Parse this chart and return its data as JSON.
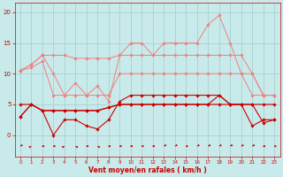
{
  "x": [
    0,
    1,
    2,
    3,
    4,
    5,
    6,
    7,
    8,
    9,
    10,
    11,
    12,
    13,
    14,
    15,
    16,
    17,
    18,
    19,
    20,
    21,
    22,
    23
  ],
  "series": [
    {
      "name": "max_gust",
      "color": "#f08080",
      "linewidth": 0.7,
      "marker": "D",
      "markersize": 1.8,
      "values": [
        10.5,
        11.5,
        13.0,
        10.0,
        6.5,
        8.5,
        6.5,
        8.0,
        5.5,
        13.0,
        15.0,
        15.0,
        13.0,
        15.0,
        15.0,
        15.0,
        15.0,
        18.0,
        19.5,
        15.0,
        10.0,
        6.5,
        6.5,
        6.5
      ]
    },
    {
      "name": "avg_wind_high",
      "color": "#f08080",
      "linewidth": 0.7,
      "marker": "D",
      "markersize": 1.8,
      "values": [
        10.5,
        11.5,
        13.0,
        13.0,
        13.0,
        12.5,
        12.5,
        12.5,
        12.5,
        13.0,
        13.0,
        13.0,
        13.0,
        13.0,
        13.0,
        13.0,
        13.0,
        13.0,
        13.0,
        13.0,
        13.0,
        10.0,
        6.5,
        6.5
      ]
    },
    {
      "name": "avg_wind_mid",
      "color": "#f08080",
      "linewidth": 0.7,
      "marker": "D",
      "markersize": 1.8,
      "values": [
        10.5,
        11.0,
        12.0,
        6.5,
        6.5,
        6.5,
        6.5,
        6.5,
        6.5,
        10.0,
        10.0,
        10.0,
        10.0,
        10.0,
        10.0,
        10.0,
        10.0,
        10.0,
        10.0,
        10.0,
        10.0,
        10.0,
        6.5,
        6.5
      ]
    },
    {
      "name": "wind_speed",
      "color": "#cc0000",
      "linewidth": 0.8,
      "marker": "D",
      "markersize": 1.8,
      "values": [
        3.0,
        5.0,
        4.0,
        0.0,
        2.5,
        2.5,
        1.5,
        1.0,
        2.5,
        5.5,
        6.5,
        6.5,
        6.5,
        6.5,
        6.5,
        6.5,
        6.5,
        6.5,
        6.5,
        5.0,
        5.0,
        1.5,
        2.5,
        2.5
      ]
    },
    {
      "name": "wind_avg",
      "color": "#cc0000",
      "linewidth": 0.8,
      "marker": "D",
      "markersize": 1.8,
      "values": [
        5.0,
        5.0,
        4.0,
        4.0,
        4.0,
        4.0,
        4.0,
        4.0,
        4.5,
        5.0,
        5.0,
        5.0,
        5.0,
        5.0,
        5.0,
        5.0,
        5.0,
        5.0,
        5.0,
        5.0,
        5.0,
        5.0,
        5.0,
        5.0
      ]
    },
    {
      "name": "wind_min",
      "color": "#cc0000",
      "linewidth": 0.8,
      "marker": "D",
      "markersize": 1.8,
      "values": [
        3.0,
        5.0,
        4.0,
        4.0,
        4.0,
        4.0,
        4.0,
        4.0,
        4.5,
        5.0,
        5.0,
        5.0,
        5.0,
        5.0,
        5.0,
        5.0,
        5.0,
        5.0,
        6.5,
        5.0,
        5.0,
        5.0,
        2.0,
        2.5
      ]
    }
  ],
  "arrows": {
    "y": -1.8,
    "color": "#cc0000",
    "directions": [
      225,
      45,
      270,
      270,
      45,
      315,
      270,
      315,
      270,
      270,
      270,
      270,
      270,
      225,
      225,
      270,
      225,
      225,
      225,
      225,
      225,
      225,
      270,
      270
    ]
  },
  "xlabel": "Vent moyen/en rafales ( km/h )",
  "xlim": [
    -0.5,
    23.5
  ],
  "ylim": [
    -3.5,
    21.5
  ],
  "yticks": [
    0,
    5,
    10,
    15,
    20
  ],
  "xticks": [
    0,
    1,
    2,
    3,
    4,
    5,
    6,
    7,
    8,
    9,
    10,
    11,
    12,
    13,
    14,
    15,
    16,
    17,
    18,
    19,
    20,
    21,
    22,
    23
  ],
  "bg_color": "#c8eaea",
  "grid_color": "#a0cccc",
  "tick_color": "#cc0000",
  "label_color": "#cc0000",
  "figsize": [
    3.2,
    2.0
  ],
  "dpi": 100
}
